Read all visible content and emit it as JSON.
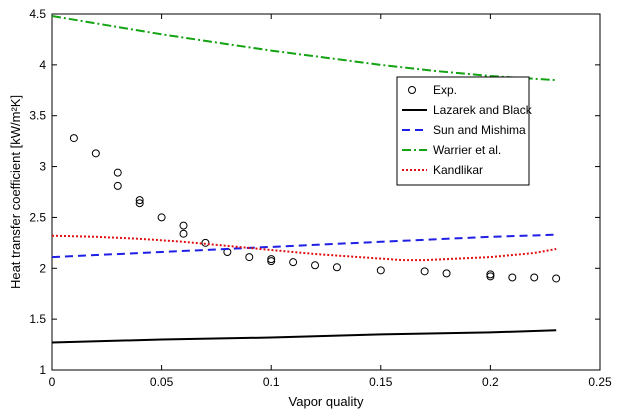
{
  "chart_data": {
    "type": "line",
    "title": "",
    "xlabel": "Vapor quality",
    "ylabel": "Heat transfer coefficient [kW/m²K]",
    "xlim": [
      0,
      0.25
    ],
    "ylim": [
      1,
      4.5
    ],
    "xticks": [
      0,
      0.05,
      0.1,
      0.15,
      0.2,
      0.25
    ],
    "xtick_labels": [
      "0",
      "0.05",
      "0.1",
      "0.15",
      "0.2",
      "0.25"
    ],
    "yticks": [
      1,
      1.5,
      2,
      2.5,
      3,
      3.5,
      4,
      4.5
    ],
    "ytick_labels": [
      "1",
      "1.5",
      "2",
      "2.5",
      "3",
      "3.5",
      "4",
      "4.5"
    ],
    "grid": false,
    "legend_position": "right",
    "series": [
      {
        "name": "Exp.",
        "style": "markers",
        "marker": "circle",
        "color": "#000000",
        "x": [
          0.01,
          0.02,
          0.03,
          0.03,
          0.04,
          0.04,
          0.05,
          0.06,
          0.06,
          0.07,
          0.08,
          0.09,
          0.1,
          0.1,
          0.11,
          0.12,
          0.13,
          0.15,
          0.17,
          0.18,
          0.2,
          0.2,
          0.21,
          0.22,
          0.23
        ],
        "y": [
          3.28,
          3.13,
          2.94,
          2.81,
          2.67,
          2.64,
          2.5,
          2.42,
          2.34,
          2.25,
          2.16,
          2.11,
          2.09,
          2.07,
          2.06,
          2.03,
          2.01,
          1.98,
          1.97,
          1.95,
          1.94,
          1.92,
          1.91,
          1.91,
          1.9
        ]
      },
      {
        "name": "Lazarek and Black",
        "style": "solid",
        "color": "#000000",
        "x": [
          0,
          0.05,
          0.1,
          0.15,
          0.2,
          0.23
        ],
        "y": [
          1.27,
          1.3,
          1.32,
          1.35,
          1.37,
          1.39
        ]
      },
      {
        "name": "Sun and Mishima",
        "style": "dashed",
        "color": "#1f1fe6",
        "x": [
          0,
          0.05,
          0.1,
          0.15,
          0.2,
          0.23
        ],
        "y": [
          2.11,
          2.16,
          2.21,
          2.26,
          2.31,
          2.33
        ]
      },
      {
        "name": "Warrier et al.",
        "style": "dashdot",
        "color": "#13a313",
        "x": [
          0,
          0.025,
          0.05,
          0.075,
          0.1,
          0.125,
          0.15,
          0.175,
          0.2,
          0.23
        ],
        "y": [
          4.48,
          4.39,
          4.3,
          4.22,
          4.14,
          4.07,
          4.0,
          3.94,
          3.89,
          3.85
        ]
      },
      {
        "name": "Kandlikar",
        "style": "dotted",
        "color": "#e01010",
        "x": [
          0,
          0.02,
          0.04,
          0.06,
          0.08,
          0.1,
          0.12,
          0.14,
          0.16,
          0.17,
          0.18,
          0.2,
          0.22,
          0.23
        ],
        "y": [
          2.32,
          2.31,
          2.29,
          2.26,
          2.22,
          2.18,
          2.14,
          2.11,
          2.08,
          2.08,
          2.09,
          2.11,
          2.15,
          2.19
        ]
      }
    ]
  }
}
